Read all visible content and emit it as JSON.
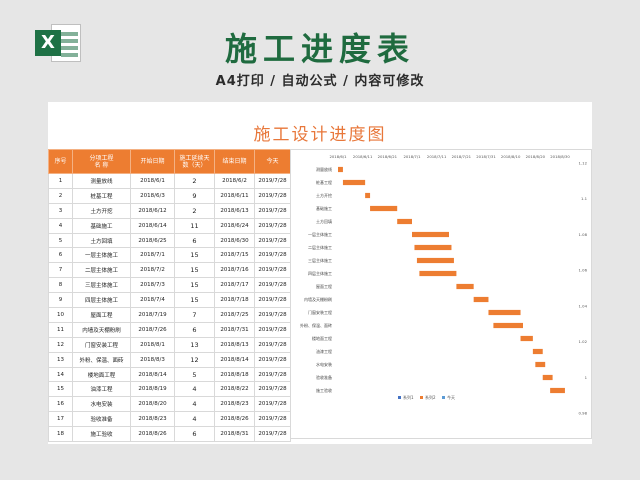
{
  "header": {
    "title": "施工进度表",
    "subtitle": "A4打印 / 自动公式 / 内容可修改",
    "logo_letter": "X"
  },
  "sheet": {
    "title": "施工设计进度图",
    "columns": [
      "序号",
      "分项工程\n名 称",
      "开始日期",
      "施工延续天\n数（天）",
      "结束日期",
      "今天"
    ],
    "rows": [
      [
        "1",
        "测量放线",
        "2018/6/1",
        "2",
        "2018/6/2",
        "2019/7/28"
      ],
      [
        "2",
        "桩基工程",
        "2018/6/3",
        "9",
        "2018/6/11",
        "2019/7/28"
      ],
      [
        "3",
        "土方开挖",
        "2018/6/12",
        "2",
        "2018/6/13",
        "2019/7/28"
      ],
      [
        "4",
        "基础施工",
        "2018/6/14",
        "11",
        "2018/6/24",
        "2019/7/28"
      ],
      [
        "5",
        "土方回填",
        "2018/6/25",
        "6",
        "2018/6/30",
        "2019/7/28"
      ],
      [
        "6",
        "一层主体施工",
        "2018/7/1",
        "15",
        "2018/7/15",
        "2019/7/28"
      ],
      [
        "7",
        "二层主体施工",
        "2018/7/2",
        "15",
        "2018/7/16",
        "2019/7/28"
      ],
      [
        "8",
        "三层主体施工",
        "2018/7/3",
        "15",
        "2018/7/17",
        "2019/7/28"
      ],
      [
        "9",
        "四层主体施工",
        "2018/7/4",
        "15",
        "2018/7/18",
        "2019/7/28"
      ],
      [
        "10",
        "屋面工程",
        "2018/7/19",
        "7",
        "2018/7/25",
        "2019/7/28"
      ],
      [
        "11",
        "内墙及天棚粉刷",
        "2018/7/26",
        "6",
        "2018/7/31",
        "2019/7/28"
      ],
      [
        "12",
        "门窗安装工程",
        "2018/8/1",
        "13",
        "2018/8/13",
        "2019/7/28"
      ],
      [
        "13",
        "外粉、保温、面砖",
        "2018/8/3",
        "12",
        "2018/8/14",
        "2019/7/28"
      ],
      [
        "14",
        "楼地面工程",
        "2018/8/14",
        "5",
        "2018/8/18",
        "2019/7/28"
      ],
      [
        "15",
        "油漆工程",
        "2018/8/19",
        "4",
        "2018/8/22",
        "2019/7/28"
      ],
      [
        "16",
        "水电安装",
        "2018/8/20",
        "4",
        "2018/8/23",
        "2019/7/28"
      ],
      [
        "17",
        "验收准备",
        "2018/8/23",
        "4",
        "2018/8/26",
        "2019/7/28"
      ],
      [
        "18",
        "施工验收",
        "2018/8/26",
        "6",
        "2018/8/31",
        "2019/7/28"
      ]
    ]
  },
  "chart_data": {
    "type": "bar",
    "orientation": "horizontal-gantt",
    "title": "",
    "x_ticks": [
      "2018/6/1",
      "2018/6/11",
      "2018/6/21",
      "2018/7/1",
      "2018/7/11",
      "2018/7/21",
      "2018/7/31",
      "2018/8/10",
      "2018/8/20",
      "2018/8/30"
    ],
    "xlim": [
      "2018/6/1",
      "2018/8/30"
    ],
    "right_axis_ticks": [
      "1.12",
      "1.1",
      "1.08",
      "1.06",
      "1.04",
      "1.02",
      "1",
      "0.98"
    ],
    "categories": [
      "测量放线",
      "桩基工程",
      "土方开挖",
      "基础施工",
      "土方回填",
      "一层主体施工",
      "二层主体施工",
      "三层主体施工",
      "四层主体施工",
      "屋面工程",
      "内墙及天棚粉刷",
      "门窗安装工程",
      "外粉、保温、面砖",
      "楼地面工程",
      "油漆工程",
      "水电安装",
      "验收准备",
      "施工验收"
    ],
    "start": [
      "2018/6/1",
      "2018/6/3",
      "2018/6/12",
      "2018/6/14",
      "2018/6/25",
      "2018/7/1",
      "2018/7/2",
      "2018/7/3",
      "2018/7/4",
      "2018/7/19",
      "2018/7/26",
      "2018/8/1",
      "2018/8/3",
      "2018/8/14",
      "2018/8/19",
      "2018/8/20",
      "2018/8/23",
      "2018/8/26"
    ],
    "duration": [
      2,
      9,
      2,
      11,
      6,
      15,
      15,
      15,
      15,
      7,
      6,
      13,
      12,
      5,
      4,
      4,
      4,
      6
    ],
    "legend": [
      "系列1",
      "系列2",
      "今天"
    ],
    "legend_position": "bottom",
    "colors": {
      "bar": "#ed7d31",
      "header": "#ed7d31",
      "title": "#e8773a",
      "hero": "#1f6b3f",
      "excel": "#1e7145",
      "today": "#5b9bd5"
    }
  }
}
